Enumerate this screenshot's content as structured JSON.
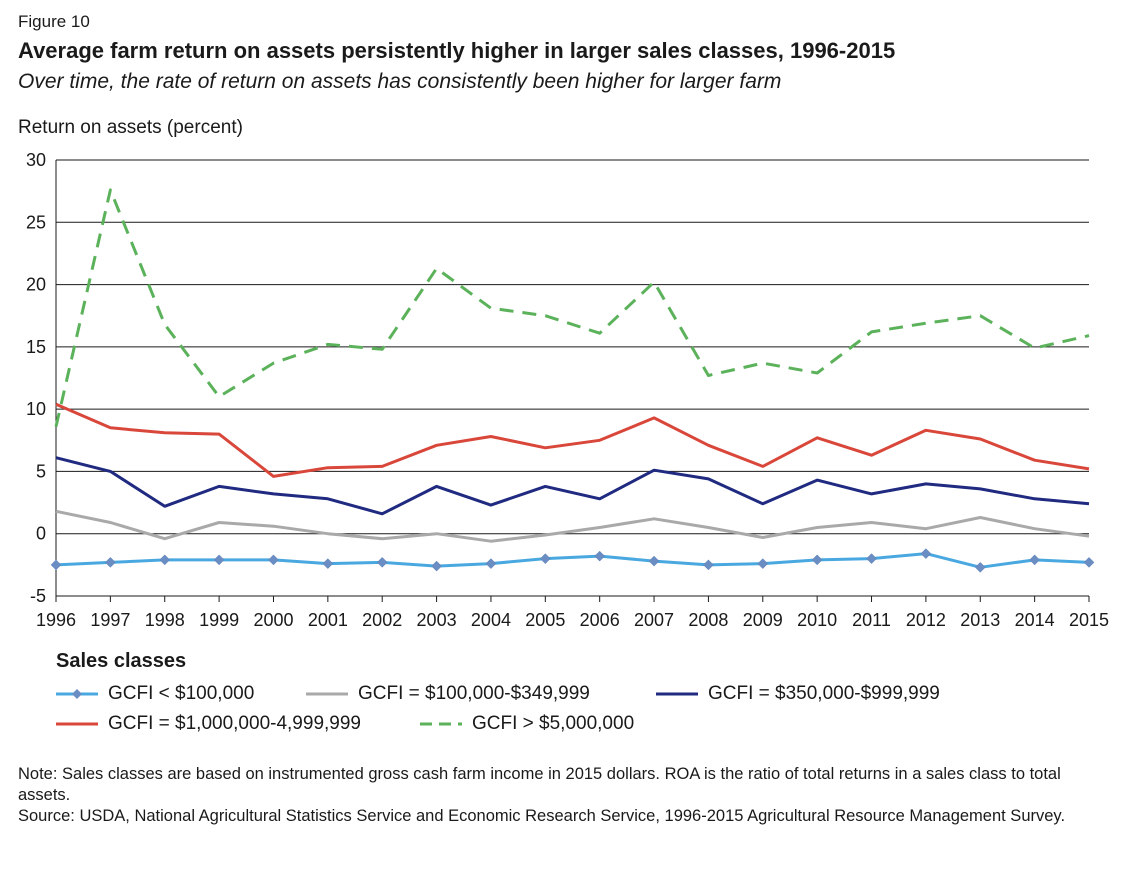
{
  "figure_label": "Figure 10",
  "title": "Average farm return on assets persistently higher in larger sales classes, 1996-2015",
  "subtitle": "Over time, the rate of return on assets has consistently been higher for larger farm",
  "legend_title": "Sales classes",
  "note": "Note: Sales classes are based on instrumented gross cash farm income in 2015 dollars. ROA is the ratio of total returns in a sales class to total assets.",
  "source": "Source: USDA, National Agricultural Statistics Service and Economic Research Service, 1996-2015 Agricultural Resource Management Survey.",
  "chart_data": {
    "type": "line",
    "title": "Average farm return on assets persistently higher in larger sales classes, 1996-2015",
    "xlabel": "",
    "ylabel": "Return on assets (percent)",
    "ylim": [
      -5,
      30
    ],
    "yticks": [
      -5,
      0,
      5,
      10,
      15,
      20,
      25,
      30
    ],
    "grid": true,
    "legend_position": "bottom",
    "x": [
      "1996",
      "1997",
      "1998",
      "1999",
      "2000",
      "2001",
      "2002",
      "2003",
      "2004",
      "2005",
      "2006",
      "2007",
      "2008",
      "2009",
      "2010",
      "2011",
      "2012",
      "2013",
      "2014",
      "2015"
    ],
    "series": [
      {
        "name": "GCFI < $100,000",
        "color": "#4aa8e0",
        "style": "solid-marker",
        "values": [
          -2.5,
          -2.3,
          -2.1,
          -2.1,
          -2.1,
          -2.4,
          -2.3,
          -2.6,
          -2.4,
          -2.0,
          -1.8,
          -2.2,
          -2.5,
          -2.4,
          -2.1,
          -2.0,
          -1.6,
          -2.7,
          -2.1,
          -2.3
        ]
      },
      {
        "name": "GCFI = $100,000-$349,999",
        "color": "#a9a9a9",
        "style": "solid",
        "values": [
          1.8,
          0.9,
          -0.4,
          0.9,
          0.6,
          0.0,
          -0.4,
          0.0,
          -0.6,
          -0.1,
          0.5,
          1.2,
          0.5,
          -0.3,
          0.5,
          0.9,
          0.4,
          1.3,
          0.4,
          -0.2
        ]
      },
      {
        "name": "GCFI = $350,000-$999,999",
        "color": "#1f2a80",
        "style": "solid",
        "values": [
          6.1,
          5.0,
          2.2,
          3.8,
          3.2,
          2.8,
          1.6,
          3.8,
          2.3,
          3.8,
          2.8,
          5.1,
          4.4,
          2.4,
          4.3,
          3.2,
          4.0,
          3.6,
          2.8,
          2.4
        ]
      },
      {
        "name": "GCFI = $1,000,000-4,999,999",
        "color": "#d9473a",
        "style": "solid",
        "values": [
          10.4,
          8.5,
          8.1,
          8.0,
          4.6,
          5.3,
          5.4,
          7.1,
          7.8,
          6.9,
          7.5,
          9.3,
          7.1,
          5.4,
          7.7,
          6.3,
          8.3,
          7.6,
          5.9,
          5.2
        ]
      },
      {
        "name": "GCFI > $5,000,000",
        "color": "#5bb25a",
        "style": "dashed",
        "values": [
          8.6,
          27.6,
          16.8,
          11.0,
          13.7,
          15.2,
          14.8,
          21.3,
          18.1,
          17.5,
          16.1,
          20.2,
          12.7,
          13.7,
          12.9,
          16.2,
          16.9,
          17.5,
          14.9,
          15.9
        ]
      }
    ]
  }
}
